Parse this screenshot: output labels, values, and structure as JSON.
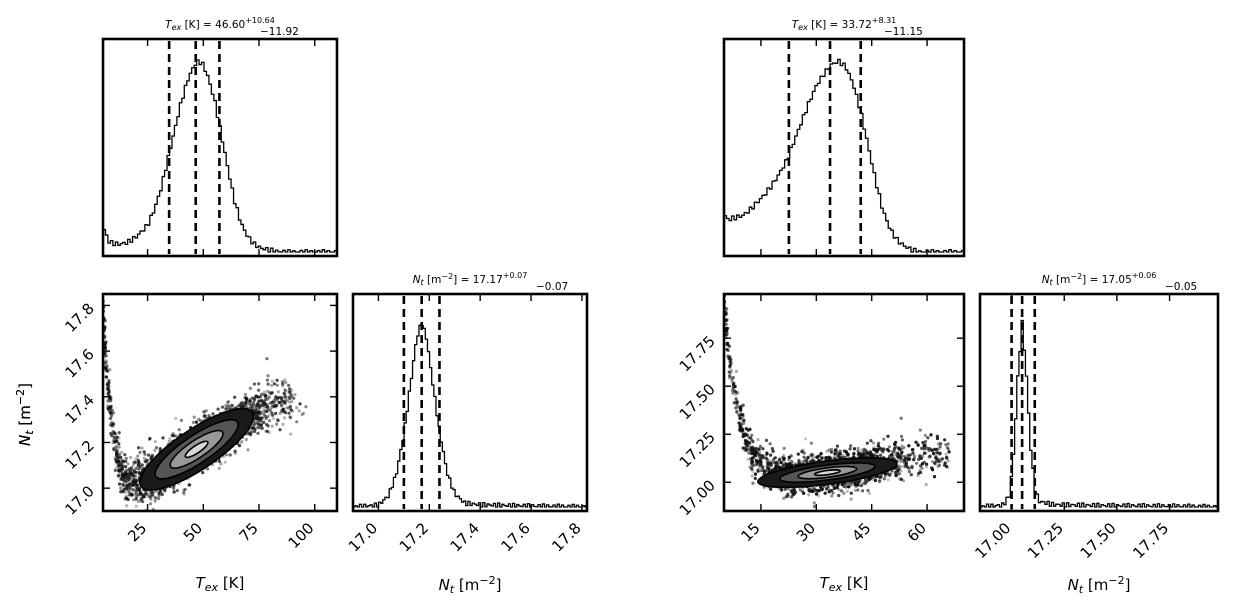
{
  "chart_data": [
    {
      "type": "corner",
      "name": "left",
      "params": [
        "T_ex",
        "N_t"
      ],
      "panels": {
        "tex_hist": {
          "title_base": "T",
          "title_sub": "ex",
          "title_rest": " [K] = 46.60",
          "title_sup": "+10.64",
          "title_low": "−11.92",
          "xlim": [
            5,
            110
          ],
          "quantiles": [
            34.68,
            46.6,
            57.24
          ],
          "curve": [
            [
              5,
              0.14
            ],
            [
              6,
              0.1
            ],
            [
              8,
              0.05
            ],
            [
              12,
              0.04
            ],
            [
              16,
              0.05
            ],
            [
              20,
              0.08
            ],
            [
              25,
              0.14
            ],
            [
              28,
              0.22
            ],
            [
              31,
              0.33
            ],
            [
              34,
              0.48
            ],
            [
              37,
              0.63
            ],
            [
              40,
              0.78
            ],
            [
              43,
              0.9
            ],
            [
              46,
              0.98
            ],
            [
              48,
              1.0
            ],
            [
              50,
              0.98
            ],
            [
              52,
              0.92
            ],
            [
              55,
              0.8
            ],
            [
              58,
              0.62
            ],
            [
              61,
              0.44
            ],
            [
              64,
              0.27
            ],
            [
              67,
              0.15
            ],
            [
              70,
              0.08
            ],
            [
              73,
              0.04
            ],
            [
              76,
              0.02
            ],
            [
              80,
              0.01
            ],
            [
              85,
              0.0
            ],
            [
              110,
              0.0
            ]
          ]
        },
        "scatter": {
          "xlabel_base": "T",
          "xlabel_sub": "ex",
          "xlabel_rest": " [K]",
          "ylabel_base": "N",
          "ylabel_sub": "t",
          "ylabel_rest": " [m",
          "ylabel_sup": "−2",
          "ylabel_end": "]",
          "xlim": [
            5,
            110
          ],
          "ylim": [
            16.9,
            17.85
          ],
          "xticks": [
            25,
            50,
            75,
            100
          ],
          "xticklabels": [
            "25",
            "50",
            "75",
            "100"
          ],
          "yticks": [
            17.0,
            17.2,
            17.4,
            17.6,
            17.8
          ],
          "yticklabels": [
            "17.0",
            "17.2",
            "17.4",
            "17.6",
            "17.8"
          ],
          "ridge": [
            [
              5,
              17.75
            ],
            [
              7,
              17.45
            ],
            [
              10,
              17.2
            ],
            [
              13,
              17.07
            ],
            [
              17,
              17.02
            ],
            [
              22,
              17.03
            ],
            [
              30,
              17.07
            ],
            [
              40,
              17.13
            ],
            [
              50,
              17.2
            ],
            [
              60,
              17.26
            ],
            [
              70,
              17.31
            ],
            [
              80,
              17.36
            ],
            [
              90,
              17.39
            ]
          ],
          "spread": 0.05,
          "contours": [
            [
              47,
              17.17,
              30,
              0.16
            ],
            [
              47,
              17.17,
              22,
              0.11
            ],
            [
              47,
              17.17,
              14,
              0.07
            ],
            [
              47,
              17.17,
              6,
              0.03
            ]
          ]
        },
        "nt_hist": {
          "title_base": "N",
          "title_sub": "t",
          "title_rest": " [m",
          "title_sup2": "−2",
          "title_rest2": "] = 17.17",
          "title_sup": "+0.07",
          "title_low": "−0.07",
          "xlabel_base": "N",
          "xlabel_sub": "t",
          "xlabel_rest": " [m",
          "xlabel_sup": "−2",
          "xlabel_end": "]",
          "xlim": [
            16.9,
            17.82
          ],
          "xticks": [
            17.0,
            17.2,
            17.4,
            17.6,
            17.8
          ],
          "xticklabels": [
            "17.0",
            "17.2",
            "17.4",
            "17.6",
            "17.8"
          ],
          "quantiles": [
            17.1,
            17.17,
            17.24
          ],
          "curve": [
            [
              16.9,
              0.0
            ],
            [
              17.0,
              0.01
            ],
            [
              17.04,
              0.06
            ],
            [
              17.07,
              0.17
            ],
            [
              17.1,
              0.38
            ],
            [
              17.13,
              0.68
            ],
            [
              17.15,
              0.88
            ],
            [
              17.17,
              0.97
            ],
            [
              17.19,
              0.88
            ],
            [
              17.21,
              0.68
            ],
            [
              17.24,
              0.4
            ],
            [
              17.27,
              0.18
            ],
            [
              17.3,
              0.07
            ],
            [
              17.34,
              0.02
            ],
            [
              17.4,
              0.012
            ],
            [
              17.5,
              0.008
            ],
            [
              17.6,
              0.005
            ],
            [
              17.7,
              0.003
            ],
            [
              17.82,
              0.0
            ]
          ]
        }
      }
    },
    {
      "type": "corner",
      "name": "right",
      "params": [
        "T_ex",
        "N_t"
      ],
      "panels": {
        "tex_hist": {
          "title_base": "T",
          "title_sub": "ex",
          "title_rest": " [K] = 33.72",
          "title_sup": "+8.31",
          "title_low": "−11.15",
          "xlim": [
            5,
            70
          ],
          "quantiles": [
            22.57,
            33.72,
            42.03
          ],
          "curve": [
            [
              5,
              0.2
            ],
            [
              6,
              0.17
            ],
            [
              8,
              0.18
            ],
            [
              10,
              0.19
            ],
            [
              12,
              0.22
            ],
            [
              14,
              0.26
            ],
            [
              16,
              0.3
            ],
            [
              18,
              0.35
            ],
            [
              20,
              0.41
            ],
            [
              22,
              0.48
            ],
            [
              24,
              0.58
            ],
            [
              26,
              0.68
            ],
            [
              28,
              0.78
            ],
            [
              30,
              0.87
            ],
            [
              32,
              0.93
            ],
            [
              34,
              0.98
            ],
            [
              36,
              1.0
            ],
            [
              38,
              0.97
            ],
            [
              40,
              0.88
            ],
            [
              42,
              0.74
            ],
            [
              44,
              0.56
            ],
            [
              46,
              0.38
            ],
            [
              48,
              0.22
            ],
            [
              50,
              0.12
            ],
            [
              52,
              0.06
            ],
            [
              54,
              0.03
            ],
            [
              56,
              0.01
            ],
            [
              58,
              0.0
            ],
            [
              70,
              0.0
            ]
          ]
        },
        "scatter": {
          "xlabel_base": "T",
          "xlabel_sub": "ex",
          "xlabel_rest": " [K]",
          "ylabel_base": "N",
          "ylabel_sub": "t",
          "ylabel_rest": " [m",
          "ylabel_sup": "−2",
          "ylabel_end": "]",
          "xlim": [
            5,
            70
          ],
          "ylim": [
            16.85,
            17.98
          ],
          "xticks": [
            15,
            30,
            45,
            60
          ],
          "xticklabels": [
            "15",
            "30",
            "45",
            "60"
          ],
          "yticks": [
            17.0,
            17.25,
            17.5,
            17.75
          ],
          "yticklabels": [
            "17.00",
            "17.25",
            "17.50",
            "17.75"
          ],
          "ridge": [
            [
              5,
              17.95
            ],
            [
              6,
              17.7
            ],
            [
              8,
              17.45
            ],
            [
              10,
              17.27
            ],
            [
              13,
              17.13
            ],
            [
              17,
              17.06
            ],
            [
              22,
              17.03
            ],
            [
              30,
              17.04
            ],
            [
              40,
              17.07
            ],
            [
              50,
              17.11
            ],
            [
              60,
              17.14
            ],
            [
              66,
              17.16
            ]
          ],
          "spread": 0.05,
          "contours": [
            [
              33,
              17.05,
              19,
              0.11
            ],
            [
              33,
              17.05,
              13,
              0.07
            ],
            [
              33,
              17.05,
              8,
              0.045
            ],
            [
              33,
              17.05,
              3.5,
              0.02
            ]
          ]
        },
        "nt_hist": {
          "title_base": "N",
          "title_sub": "t",
          "title_rest": " [m",
          "title_sup2": "−2",
          "title_rest2": "] = 17.05",
          "title_sup": "+0.06",
          "title_low": "−0.05",
          "xlabel_base": "N",
          "xlabel_sub": "t",
          "xlabel_rest": " [m",
          "xlabel_sup": "−2",
          "xlabel_end": "]",
          "xlim": [
            16.85,
            17.98
          ],
          "xticks": [
            17.0,
            17.25,
            17.5,
            17.75
          ],
          "xticklabels": [
            "17.00",
            "17.25",
            "17.50",
            "17.75"
          ],
          "quantiles": [
            17.0,
            17.05,
            17.11
          ],
          "curve": [
            [
              16.85,
              0.0
            ],
            [
              16.96,
              0.01
            ],
            [
              16.99,
              0.06
            ],
            [
              17.01,
              0.28
            ],
            [
              17.03,
              0.68
            ],
            [
              17.05,
              0.97
            ],
            [
              17.07,
              0.7
            ],
            [
              17.09,
              0.32
            ],
            [
              17.11,
              0.1
            ],
            [
              17.13,
              0.03
            ],
            [
              17.2,
              0.012
            ],
            [
              17.4,
              0.008
            ],
            [
              17.6,
              0.006
            ],
            [
              17.8,
              0.004
            ],
            [
              17.98,
              0.0
            ]
          ]
        }
      }
    }
  ]
}
